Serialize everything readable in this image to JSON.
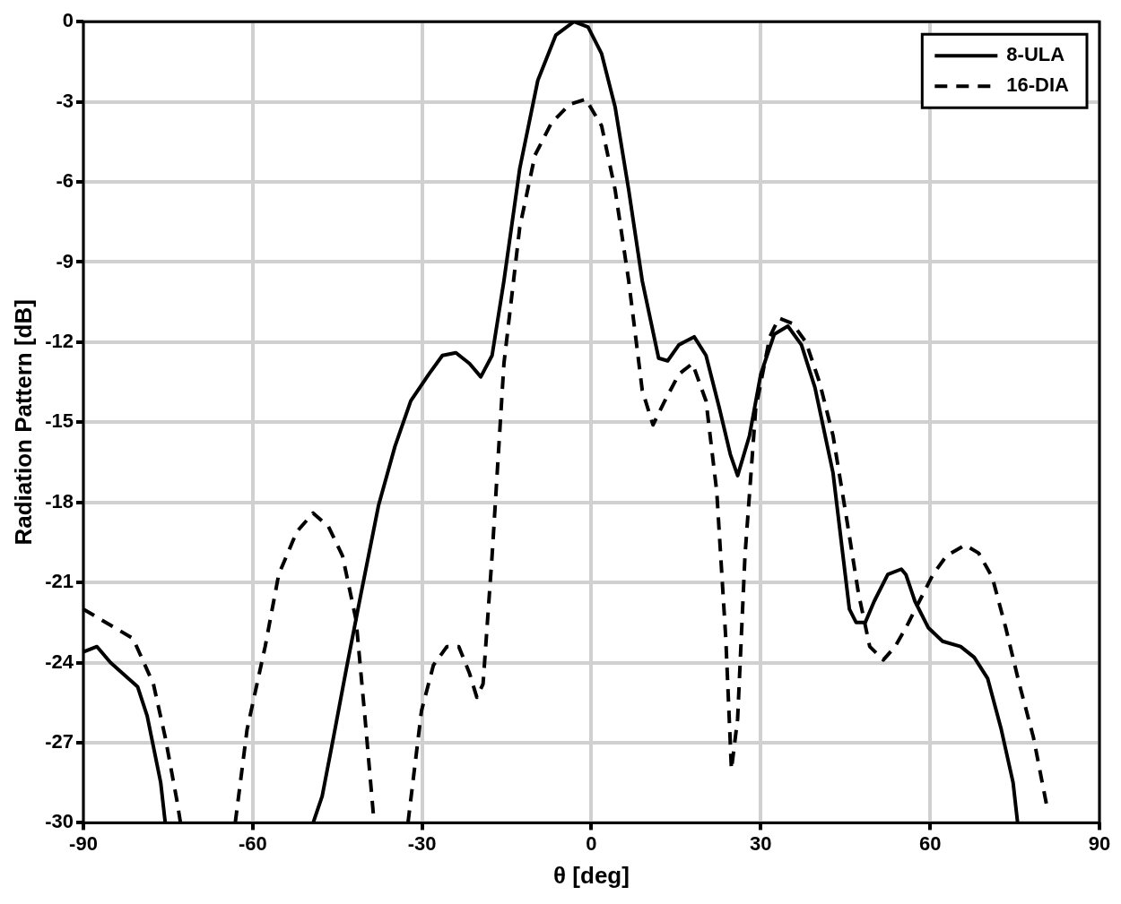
{
  "chart_data": {
    "type": "line",
    "xlabel": "θ [deg]",
    "ylabel": "Radiation Pattern [dB]",
    "xlim": [
      -90,
      90
    ],
    "xticks": [
      -90,
      -60,
      -30,
      0,
      30,
      60,
      90
    ],
    "ylim": [
      -30,
      0
    ],
    "yticks": [
      -30,
      -27,
      -24,
      -21,
      -18,
      -15,
      -12,
      -9,
      -6,
      -3,
      0
    ],
    "grid": true,
    "legend": "top right",
    "marker": "none",
    "series": [
      {
        "name": "8-ULA",
        "color": "#000000",
        "line_style": "solid",
        "x": [
          -90,
          -87.6,
          -85.2,
          -82,
          -80.4,
          -78.7,
          -76.3,
          -75.5,
          -62,
          -49.3,
          -47.7,
          -45.7,
          -43.3,
          -40.9,
          -37.7,
          -34.8,
          -32,
          -28.8,
          -26.4,
          -24,
          -21.6,
          -19.6,
          -17.6,
          -15.5,
          -12.7,
          -9.5,
          -6.3,
          -3.1,
          -0.6,
          1.8,
          4.2,
          6.6,
          9,
          11.9,
          13.5,
          15.5,
          18.2,
          20.3,
          22.7,
          24.6,
          25.9,
          28,
          30,
          32.4,
          34.8,
          37.2,
          39.6,
          42.8,
          45.7,
          46.9,
          48.5,
          50.1,
          52.5,
          54.9,
          55.7,
          57.3,
          59.7,
          62.2,
          65.4,
          67.8,
          70.2,
          72.6,
          74.7,
          75.5
        ],
        "values": [
          -23.6,
          -23.4,
          -24,
          -24.6,
          -24.9,
          -26,
          -28.5,
          -30,
          null,
          -30,
          -29,
          -26.8,
          -24.1,
          -21.5,
          -18.1,
          -15.9,
          -14.2,
          -13.2,
          -12.5,
          -12.4,
          -12.8,
          -13.3,
          -12.5,
          -9.7,
          -5.5,
          -2.2,
          -0.5,
          0,
          -0.2,
          -1.2,
          -3.2,
          -6.3,
          -9.7,
          -12.6,
          -12.7,
          -12.1,
          -11.8,
          -12.5,
          -14.5,
          -16.2,
          -17,
          -15.5,
          -13.2,
          -11.7,
          -11.4,
          -12.1,
          -13.7,
          -16.9,
          -22,
          -22.5,
          -22.5,
          -21.7,
          -20.7,
          -20.5,
          -20.7,
          -21.7,
          -22.7,
          -23.2,
          -23.4,
          -23.8,
          -24.6,
          -26.5,
          -28.5,
          -30
        ]
      },
      {
        "name": "16-DIA",
        "color": "#000000",
        "line_style": "dashed",
        "x": [
          -90,
          -87.6,
          -84.4,
          -81.2,
          -79.5,
          -77.6,
          -75.5,
          -73.4,
          -72.8,
          -68,
          -63.1,
          -61,
          -57.8,
          -55.4,
          -52.2,
          -49.3,
          -46.6,
          -44.1,
          -41.7,
          -40.1,
          -38.5,
          -35,
          -32.5,
          -30.1,
          -28,
          -25.6,
          -23.5,
          -21.6,
          -20.3,
          -19.2,
          -17.6,
          -15.5,
          -12.7,
          -10,
          -7.1,
          -3.9,
          -1,
          1.8,
          4.2,
          6.6,
          9,
          10.9,
          13,
          15.5,
          17.9,
          20.3,
          22.2,
          23.8,
          24.8,
          25.9,
          27.2,
          29.1,
          31.6,
          33.2,
          35.6,
          38,
          40.4,
          42.8,
          45.2,
          47.3,
          49.3,
          51.7,
          53.8,
          55.7,
          58.1,
          60.5,
          62.9,
          66.2,
          68.6,
          71,
          73.4,
          75.8,
          78.3,
          80.7
        ],
        "values": [
          -22,
          -22.3,
          -22.7,
          -23.1,
          -23.9,
          -24.8,
          -26.8,
          -29.2,
          -30,
          null,
          -30,
          -26.5,
          -23.4,
          -20.7,
          -19.1,
          -18.4,
          -18.9,
          -20,
          -22.4,
          -26.1,
          -30,
          null,
          -30,
          -25.8,
          -24.1,
          -23.4,
          -23.4,
          -24.4,
          -25.3,
          -24.8,
          -20,
          -12.8,
          -7.7,
          -5,
          -3.8,
          -3.1,
          -2.9,
          -3.9,
          -6.3,
          -9.7,
          -13.8,
          -15.1,
          -14.2,
          -13.2,
          -12.8,
          -14.2,
          -17.6,
          -23.1,
          -28,
          -26.1,
          -20,
          -14.5,
          -11.8,
          -11.1,
          -11.3,
          -12,
          -13.5,
          -15.5,
          -18.6,
          -21.4,
          -23.4,
          -23.9,
          -23.4,
          -22.7,
          -21.7,
          -20.7,
          -20,
          -19.6,
          -19.9,
          -20.8,
          -22.7,
          -24.8,
          -26.8,
          -29.4
        ]
      }
    ]
  }
}
